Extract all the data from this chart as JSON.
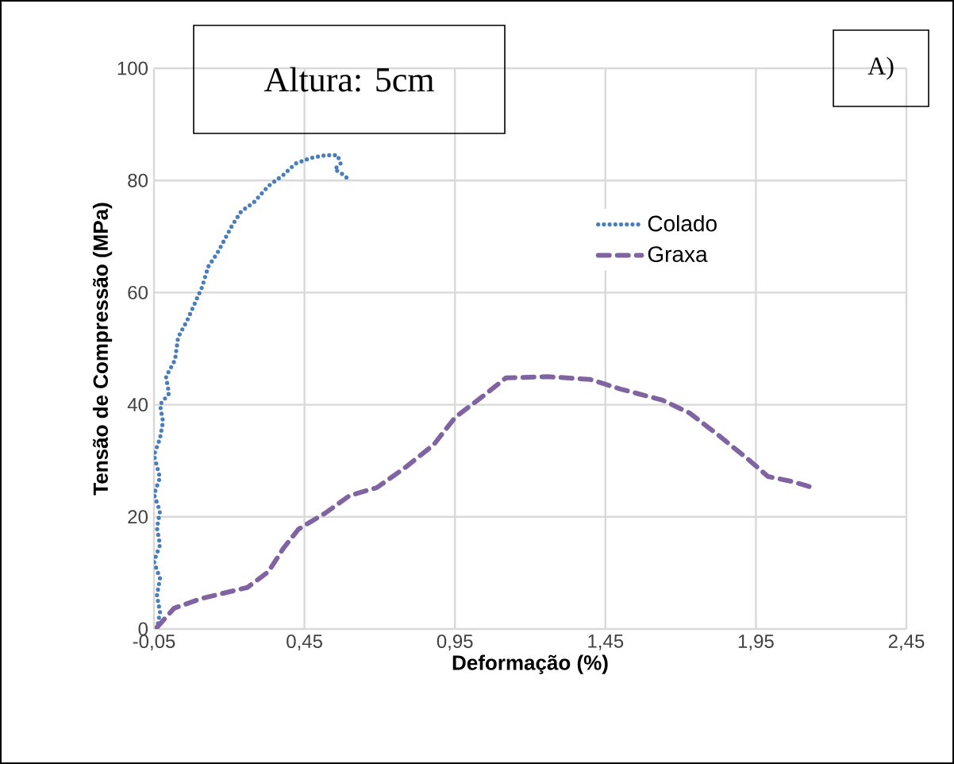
{
  "chart_data": {
    "type": "line",
    "xlabel": "Deformação (%)",
    "ylabel": "Tensão de Compressão (MPa)",
    "annotations": [
      "Altura: 5cm",
      "A)"
    ],
    "xlim": [
      -0.05,
      2.45
    ],
    "ylim": [
      0,
      100
    ],
    "xticks": [
      {
        "value": -0.05,
        "label": "-0,05"
      },
      {
        "value": 0.45,
        "label": "0,45"
      },
      {
        "value": 0.95,
        "label": "0,95"
      },
      {
        "value": 1.45,
        "label": "1,45"
      },
      {
        "value": 1.95,
        "label": "1,95"
      },
      {
        "value": 2.45,
        "label": "2,45"
      }
    ],
    "yticks": [
      0,
      20,
      40,
      60,
      80,
      100
    ],
    "grid": true,
    "legend": "top right",
    "marker": "none",
    "series": [
      {
        "name": "Colado",
        "color": "#4a7ebb",
        "line_style": "dotted",
        "x": [
          -0.04,
          -0.03,
          -0.04,
          -0.03,
          -0.05,
          -0.03,
          -0.04,
          -0.03,
          -0.05,
          -0.03,
          -0.05,
          -0.03,
          -0.02,
          -0.03,
          0.0,
          -0.01,
          0.02,
          0.03,
          0.06,
          0.085,
          0.11,
          0.13,
          0.16,
          0.18,
          0.21,
          0.24,
          0.28,
          0.33,
          0.38,
          0.42,
          0.47,
          0.52,
          0.56,
          0.57,
          0.55,
          0.58,
          0.6
        ],
        "values": [
          0,
          3,
          6,
          9,
          12,
          15,
          18,
          21,
          24,
          27,
          31,
          34,
          37,
          40,
          42,
          45,
          48,
          52,
          55,
          58,
          61,
          64.6,
          67,
          69,
          72,
          74.5,
          76,
          79,
          81,
          83,
          84,
          84.5,
          84.5,
          83,
          82,
          81,
          80
        ]
      },
      {
        "name": "Graxa",
        "color": "#8064a2",
        "line_style": "dashed",
        "x": [
          -0.04,
          0.017,
          0.105,
          0.26,
          0.33,
          0.38,
          0.43,
          0.52,
          0.6,
          0.69,
          0.78,
          0.88,
          0.95,
          1.04,
          1.12,
          1.26,
          1.4,
          1.5,
          1.64,
          1.73,
          1.82,
          1.93,
          1.99,
          2.07,
          2.14
        ],
        "values": [
          0.3,
          3.7,
          5.4,
          7.4,
          10.2,
          14.4,
          17.8,
          20.7,
          23.8,
          25.2,
          28.6,
          32.9,
          37.7,
          41.4,
          44.8,
          45,
          44.5,
          42.8,
          40.8,
          38.5,
          34.8,
          30,
          27.2,
          26.3,
          25.2
        ]
      }
    ]
  }
}
